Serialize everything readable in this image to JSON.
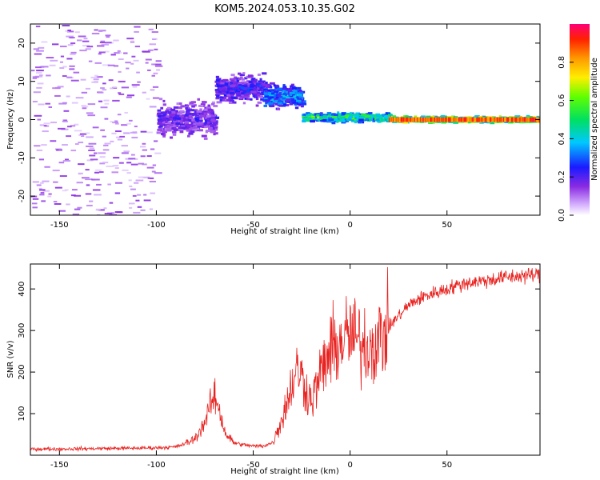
{
  "figure_title": "KOM5.2024.053.10.35.G02",
  "colors": {
    "snr_line": "#e8221f",
    "frame": "#000000"
  },
  "chart_data": [
    {
      "type": "heatmap",
      "title": "KOM5.2024.053.10.35.G02",
      "xlabel": "Height of straight line (km)",
      "ylabel": "Frequency (Hz)",
      "xlim": [
        -165,
        98
      ],
      "ylim": [
        -25,
        25
      ],
      "xticks": [
        -150,
        -100,
        -50,
        0,
        50
      ],
      "yticks": [
        -20,
        -10,
        0,
        10,
        20
      ],
      "colorbar": {
        "label": "Normalized spectral amplitude",
        "range": [
          0.0,
          1.0
        ],
        "ticks": [
          "0.0",
          "0.2",
          "0.4",
          "0.6",
          "0.8"
        ],
        "colormap": "rainbow (white-violet-blue-cyan-green-yellow-orange-red-magenta)"
      },
      "features": [
        {
          "x_range": [
            -165,
            -100
          ],
          "freq_range": [
            -25,
            25
          ],
          "amplitude": 0.08
        },
        {
          "x_range": [
            -100,
            -70
          ],
          "freq_center": 0,
          "freq_spread": 6,
          "amplitude": 0.2
        },
        {
          "x_range": [
            -70,
            -45
          ],
          "freq_center": 8,
          "freq_spread": 5,
          "amplitude": 0.25
        },
        {
          "x_range": [
            -45,
            -25
          ],
          "freq_center": 6,
          "freq_spread": 4,
          "amplitude": 0.35
        },
        {
          "x_range": [
            -25,
            20
          ],
          "freq_center": 0.5,
          "freq_spread": 1.5,
          "amplitude": 0.55
        },
        {
          "x_range": [
            20,
            98
          ],
          "freq_center": 0,
          "freq_spread": 1,
          "amplitude": 0.85
        }
      ]
    },
    {
      "type": "line",
      "title": "",
      "xlabel": "Height of straight line (km)",
      "ylabel": "SNR (v/v)",
      "xlim": [
        -165,
        98
      ],
      "ylim": [
        0,
        460
      ],
      "xticks": [
        -150,
        -100,
        -50,
        0,
        50
      ],
      "yticks": [
        100,
        200,
        300,
        400
      ],
      "series": [
        {
          "x": [
            -165,
            -150,
            -130,
            -110,
            -100,
            -90,
            -85,
            -80,
            -75,
            -72,
            -70,
            -68,
            -66,
            -64,
            -60,
            -55,
            -50,
            -45,
            -40,
            -35,
            -30,
            -27,
            -25,
            -22,
            -20,
            -17,
            -15,
            -12,
            -10,
            -5,
            0,
            5,
            10,
            15,
            20,
            25,
            30,
            35,
            40,
            50,
            60,
            70,
            80,
            90,
            98
          ],
          "y": [
            15,
            15,
            16,
            17,
            18,
            20,
            28,
            40,
            80,
            120,
            140,
            120,
            80,
            50,
            30,
            25,
            22,
            22,
            30,
            90,
            170,
            210,
            190,
            150,
            130,
            170,
            200,
            230,
            250,
            270,
            290,
            270,
            260,
            280,
            310,
            335,
            360,
            375,
            385,
            400,
            415,
            420,
            428,
            432,
            435
          ]
        }
      ]
    }
  ]
}
